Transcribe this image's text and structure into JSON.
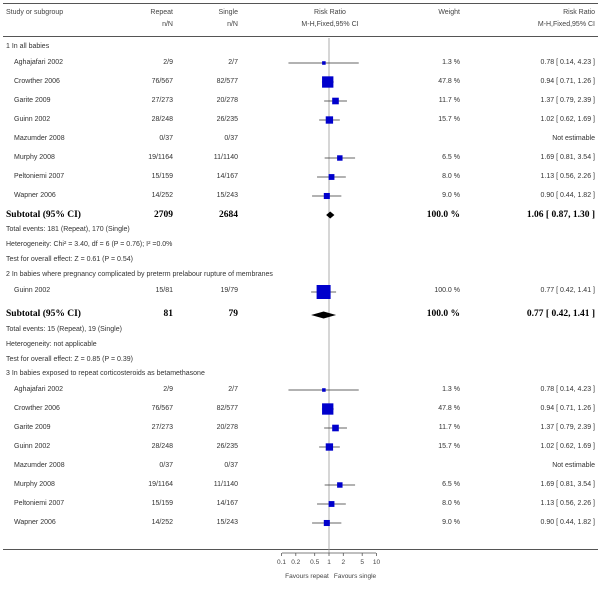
{
  "header": {
    "study": "Study or subgroup",
    "col1": "Repeat",
    "col1_sub": "n/N",
    "col2": "Single",
    "col2_sub": "n/N",
    "effect": "Risk Ratio",
    "effect_sub": "M-H,Fixed,95% CI",
    "weight": "Weight",
    "ci": "Risk Ratio",
    "ci_sub": "M-H,Fixed,95% CI"
  },
  "groups": [
    {
      "heading": "1 In all babies",
      "studies": [
        {
          "name": "Aghajafari 2002",
          "repeat": "2/9",
          "single": "2/7",
          "weight": "1.3 %",
          "ci_text": "0.78 [ 0.14, 4.23 ]",
          "rr": 0.78,
          "lo": 0.14,
          "hi": 4.23,
          "w": 1.3
        },
        {
          "name": "Crowther 2006",
          "repeat": "76/567",
          "single": "82/577",
          "weight": "47.8 %",
          "ci_text": "0.94 [ 0.71, 1.26 ]",
          "rr": 0.94,
          "lo": 0.71,
          "hi": 1.26,
          "w": 47.8
        },
        {
          "name": "Garite 2009",
          "repeat": "27/273",
          "single": "20/278",
          "weight": "11.7 %",
          "ci_text": "1.37 [ 0.79, 2.39 ]",
          "rr": 1.37,
          "lo": 0.79,
          "hi": 2.39,
          "w": 11.7
        },
        {
          "name": "Guinn 2002",
          "repeat": "28/248",
          "single": "26/235",
          "weight": "15.7 %",
          "ci_text": "1.02 [ 0.62, 1.69 ]",
          "rr": 1.02,
          "lo": 0.62,
          "hi": 1.69,
          "w": 15.7
        },
        {
          "name": "Mazumder 2008",
          "repeat": "0/37",
          "single": "0/37",
          "weight": "",
          "ci_text": "Not estimable",
          "rr": null,
          "lo": null,
          "hi": null,
          "w": 0
        },
        {
          "name": "Murphy 2008",
          "repeat": "19/1164",
          "single": "11/1140",
          "weight": "6.5 %",
          "ci_text": "1.69 [ 0.81, 3.54 ]",
          "rr": 1.69,
          "lo": 0.81,
          "hi": 3.54,
          "w": 6.5
        },
        {
          "name": "Peltoniemi 2007",
          "repeat": "15/159",
          "single": "14/167",
          "weight": "8.0 %",
          "ci_text": "1.13 [ 0.56, 2.26 ]",
          "rr": 1.13,
          "lo": 0.56,
          "hi": 2.26,
          "w": 8.0
        },
        {
          "name": "Wapner 2006",
          "repeat": "14/252",
          "single": "15/243",
          "weight": "9.0 %",
          "ci_text": "0.90 [ 0.44, 1.82 ]",
          "rr": 0.9,
          "lo": 0.44,
          "hi": 1.82,
          "w": 9.0
        }
      ],
      "subtotal": {
        "label": "Subtotal (95% CI)",
        "repeat": "2709",
        "single": "2684",
        "weight": "100.0 %",
        "ci_text": "1.06 [ 0.87, 1.30 ]",
        "rr": 1.06,
        "lo": 0.87,
        "hi": 1.3
      },
      "notes": [
        "Total events: 181 (Repeat), 170 (Single)",
        "Heterogeneity: Chi² = 3.40, df = 6 (P = 0.76); I² =0.0%",
        "Test for overall effect: Z = 0.61 (P = 0.54)"
      ]
    },
    {
      "heading": "2 In babies where pregnancy complicated by preterm prelabour rupture of membranes",
      "studies": [
        {
          "name": "Guinn 2002",
          "repeat": "15/81",
          "single": "19/79",
          "weight": "100.0 %",
          "ci_text": "0.77 [ 0.42, 1.41 ]",
          "rr": 0.77,
          "lo": 0.42,
          "hi": 1.41,
          "w": 100
        }
      ],
      "subtotal": {
        "label": "Subtotal (95% CI)",
        "repeat": "81",
        "single": "79",
        "weight": "100.0 %",
        "ci_text": "0.77 [ 0.42, 1.41 ]",
        "rr": 0.77,
        "lo": 0.42,
        "hi": 1.41
      },
      "notes": [
        "Total events: 15 (Repeat), 19 (Single)",
        "Heterogeneity: not applicable",
        "Test for overall effect: Z = 0.85 (P = 0.39)"
      ]
    },
    {
      "heading": "3 In babies exposed to repeat corticosteroids as betamethasone",
      "studies": [
        {
          "name": "Aghajafari 2002",
          "repeat": "2/9",
          "single": "2/7",
          "weight": "1.3 %",
          "ci_text": "0.78 [ 0.14, 4.23 ]",
          "rr": 0.78,
          "lo": 0.14,
          "hi": 4.23,
          "w": 1.3
        },
        {
          "name": "Crowther 2006",
          "repeat": "76/567",
          "single": "82/577",
          "weight": "47.8 %",
          "ci_text": "0.94 [ 0.71, 1.26 ]",
          "rr": 0.94,
          "lo": 0.71,
          "hi": 1.26,
          "w": 47.8
        },
        {
          "name": "Garite 2009",
          "repeat": "27/273",
          "single": "20/278",
          "weight": "11.7 %",
          "ci_text": "1.37 [ 0.79, 2.39 ]",
          "rr": 1.37,
          "lo": 0.79,
          "hi": 2.39,
          "w": 11.7
        },
        {
          "name": "Guinn 2002",
          "repeat": "28/248",
          "single": "26/235",
          "weight": "15.7 %",
          "ci_text": "1.02 [ 0.62, 1.69 ]",
          "rr": 1.02,
          "lo": 0.62,
          "hi": 1.69,
          "w": 15.7
        },
        {
          "name": "Mazumder 2008",
          "repeat": "0/37",
          "single": "0/37",
          "weight": "",
          "ci_text": "Not estimable",
          "rr": null,
          "lo": null,
          "hi": null,
          "w": 0
        },
        {
          "name": "Murphy 2008",
          "repeat": "19/1164",
          "single": "11/1140",
          "weight": "6.5 %",
          "ci_text": "1.69 [ 0.81, 3.54 ]",
          "rr": 1.69,
          "lo": 0.81,
          "hi": 3.54,
          "w": 6.5
        },
        {
          "name": "Peltoniemi 2007",
          "repeat": "15/159",
          "single": "14/167",
          "weight": "8.0 %",
          "ci_text": "1.13 [ 0.56, 2.26 ]",
          "rr": 1.13,
          "lo": 0.56,
          "hi": 2.26,
          "w": 8.0
        },
        {
          "name": "Wapner 2006",
          "repeat": "14/252",
          "single": "15/243",
          "weight": "9.0 %",
          "ci_text": "0.90 [ 0.44, 1.82 ]",
          "rr": 0.9,
          "lo": 0.44,
          "hi": 1.82,
          "w": 9.0
        }
      ]
    }
  ],
  "axis": {
    "ticks": [
      0.1,
      0.2,
      0.5,
      1,
      2,
      5,
      10
    ],
    "tick_labels": [
      "0.1",
      "0.2",
      "0.5",
      "1",
      "2",
      "5",
      "10"
    ],
    "favours_left": "Favours repeat",
    "favours_right": "Favours single"
  },
  "colors": {
    "marker": "#0000cc",
    "line": "#333333",
    "diamond": "#000000"
  },
  "chart_data": {
    "type": "forest",
    "title": "Risk Ratio M-H,Fixed,95% CI",
    "xscale": "log",
    "xlim": [
      0.1,
      10
    ],
    "null_value": 1,
    "xlabel_left": "Favours repeat",
    "xlabel_right": "Favours single",
    "series": [
      {
        "name": "1 In all babies",
        "studies": [
          "Aghajafari 2002",
          "Crowther 2006",
          "Garite 2009",
          "Guinn 2002",
          "Mazumder 2008",
          "Murphy 2008",
          "Peltoniemi 2007",
          "Wapner 2006"
        ],
        "rr": [
          0.78,
          0.94,
          1.37,
          1.02,
          null,
          1.69,
          1.13,
          0.9
        ],
        "lo": [
          0.14,
          0.71,
          0.79,
          0.62,
          null,
          0.81,
          0.56,
          0.44
        ],
        "hi": [
          4.23,
          1.26,
          2.39,
          1.69,
          null,
          3.54,
          2.26,
          1.82
        ],
        "weight": [
          1.3,
          47.8,
          11.7,
          15.7,
          null,
          6.5,
          8.0,
          9.0
        ],
        "pooled": {
          "rr": 1.06,
          "lo": 0.87,
          "hi": 1.3
        }
      },
      {
        "name": "2 In babies where pregnancy complicated by preterm prelabour rupture of membranes",
        "studies": [
          "Guinn 2002"
        ],
        "rr": [
          0.77
        ],
        "lo": [
          0.42
        ],
        "hi": [
          1.41
        ],
        "weight": [
          100.0
        ],
        "pooled": {
          "rr": 0.77,
          "lo": 0.42,
          "hi": 1.41
        }
      },
      {
        "name": "3 In babies exposed to repeat corticosteroids as betamethasone",
        "studies": [
          "Aghajafari 2002",
          "Crowther 2006",
          "Garite 2009",
          "Guinn 2002",
          "Mazumder 2008",
          "Murphy 2008",
          "Peltoniemi 2007",
          "Wapner 2006"
        ],
        "rr": [
          0.78,
          0.94,
          1.37,
          1.02,
          null,
          1.69,
          1.13,
          0.9
        ],
        "lo": [
          0.14,
          0.71,
          0.79,
          0.62,
          null,
          0.81,
          0.56,
          0.44
        ],
        "hi": [
          4.23,
          1.26,
          2.39,
          1.69,
          null,
          3.54,
          2.26,
          1.82
        ],
        "weight": [
          1.3,
          47.8,
          11.7,
          15.7,
          null,
          6.5,
          8.0,
          9.0
        ]
      }
    ]
  }
}
